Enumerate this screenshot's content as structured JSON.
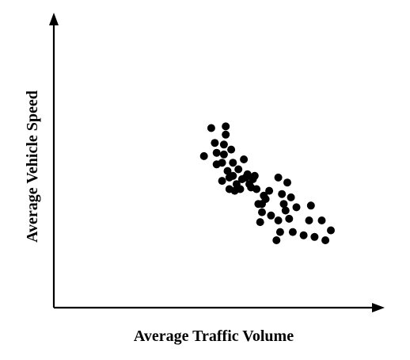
{
  "chart_data": {
    "type": "scatter",
    "xlabel": "Average Traffic Volume",
    "ylabel": "Average Vehicle Speed",
    "axis_ticks": "none",
    "grid": false,
    "xlim": [
      0,
      100
    ],
    "ylim": [
      0,
      100
    ],
    "point_color": "#000000",
    "points": [
      {
        "x": 30,
        "y": 64
      },
      {
        "x": 34,
        "y": 81
      },
      {
        "x": 36,
        "y": 72
      },
      {
        "x": 37,
        "y": 59
      },
      {
        "x": 37,
        "y": 66
      },
      {
        "x": 40,
        "y": 60
      },
      {
        "x": 40,
        "y": 49
      },
      {
        "x": 41,
        "y": 71
      },
      {
        "x": 41,
        "y": 65
      },
      {
        "x": 42,
        "y": 82
      },
      {
        "x": 42,
        "y": 77
      },
      {
        "x": 43,
        "y": 55
      },
      {
        "x": 44,
        "y": 51
      },
      {
        "x": 44,
        "y": 44
      },
      {
        "x": 45,
        "y": 68
      },
      {
        "x": 46,
        "y": 60
      },
      {
        "x": 46,
        "y": 52
      },
      {
        "x": 47,
        "y": 43
      },
      {
        "x": 48,
        "y": 47
      },
      {
        "x": 49,
        "y": 56
      },
      {
        "x": 50,
        "y": 44
      },
      {
        "x": 51,
        "y": 50
      },
      {
        "x": 52,
        "y": 62
      },
      {
        "x": 53,
        "y": 51
      },
      {
        "x": 54,
        "y": 53
      },
      {
        "x": 55,
        "y": 47
      },
      {
        "x": 56,
        "y": 45
      },
      {
        "x": 57,
        "y": 50
      },
      {
        "x": 58,
        "y": 52
      },
      {
        "x": 59,
        "y": 44
      },
      {
        "x": 60,
        "y": 35
      },
      {
        "x": 61,
        "y": 24
      },
      {
        "x": 62,
        "y": 35
      },
      {
        "x": 62,
        "y": 30
      },
      {
        "x": 63,
        "y": 40
      },
      {
        "x": 64,
        "y": 38
      },
      {
        "x": 66,
        "y": 43
      },
      {
        "x": 67,
        "y": 28
      },
      {
        "x": 70,
        "y": 13
      },
      {
        "x": 71,
        "y": 25
      },
      {
        "x": 71,
        "y": 51
      },
      {
        "x": 72,
        "y": 18
      },
      {
        "x": 73,
        "y": 41
      },
      {
        "x": 74,
        "y": 35
      },
      {
        "x": 75,
        "y": 31
      },
      {
        "x": 76,
        "y": 48
      },
      {
        "x": 77,
        "y": 26
      },
      {
        "x": 78,
        "y": 39
      },
      {
        "x": 79,
        "y": 18
      },
      {
        "x": 81,
        "y": 33
      },
      {
        "x": 85,
        "y": 16
      },
      {
        "x": 88,
        "y": 25
      },
      {
        "x": 89,
        "y": 34
      },
      {
        "x": 91,
        "y": 15
      },
      {
        "x": 95,
        "y": 25
      },
      {
        "x": 97,
        "y": 13
      },
      {
        "x": 100,
        "y": 19
      }
    ]
  }
}
